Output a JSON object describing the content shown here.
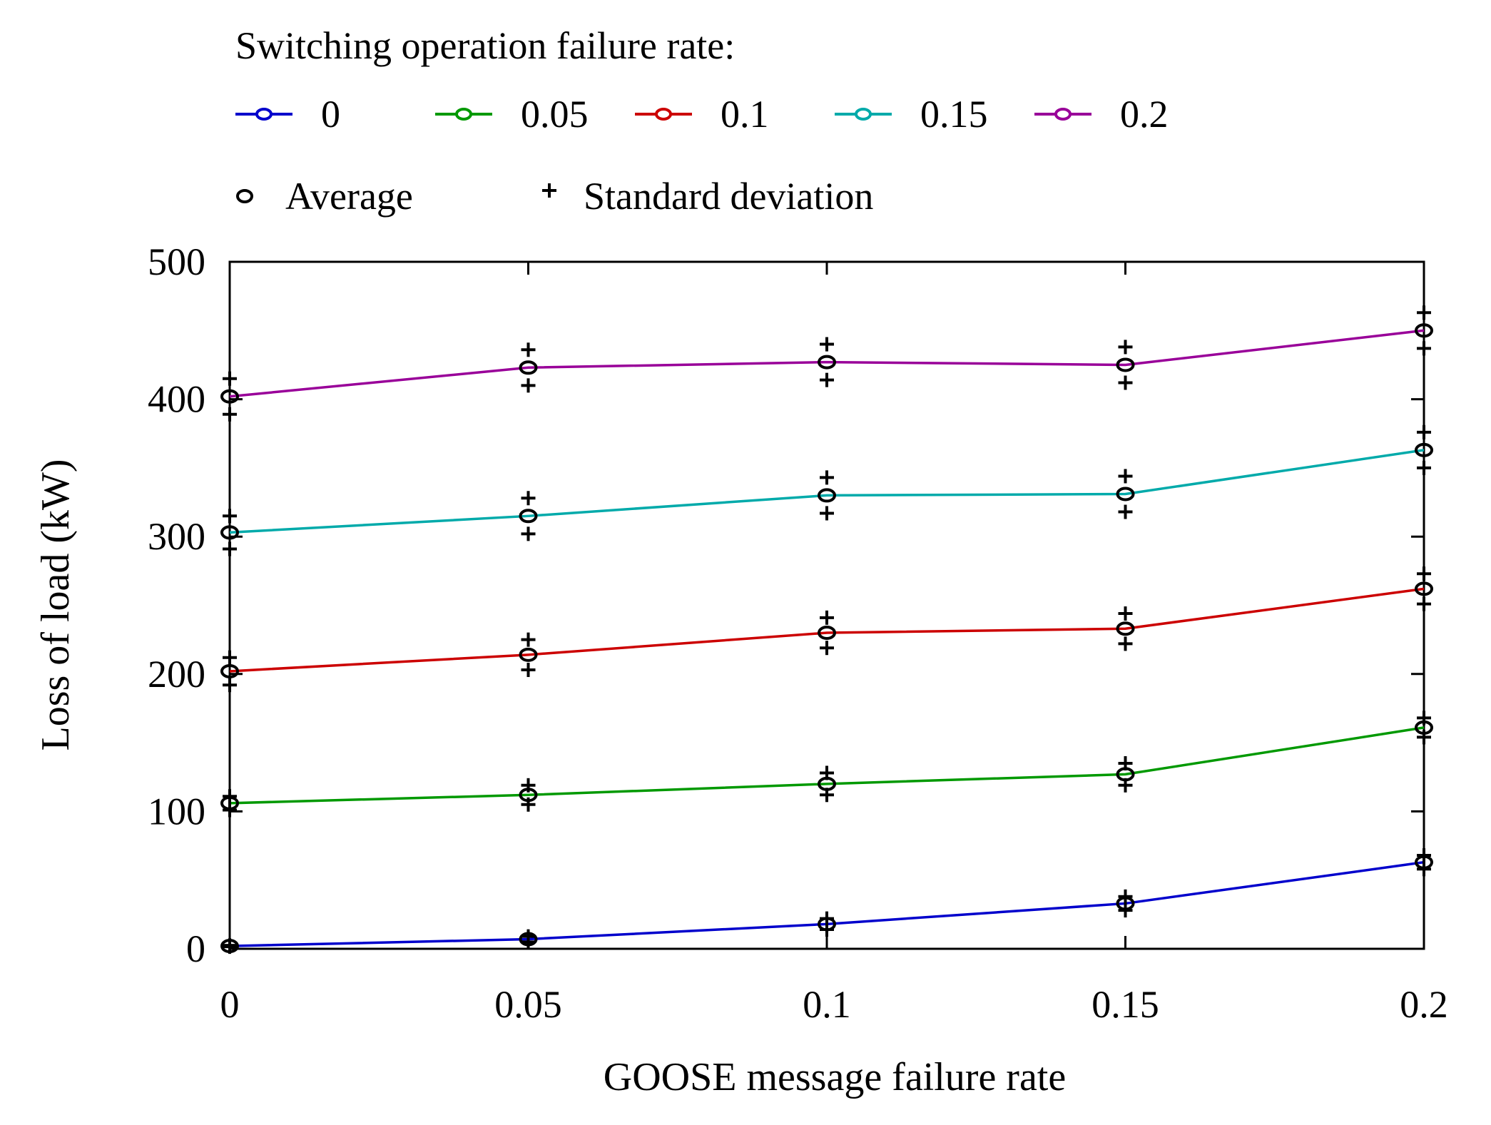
{
  "chart_data": {
    "type": "line",
    "xlabel": "GOOSE message failure rate",
    "ylabel": "Loss of load (kW)",
    "x": [
      0,
      0.05,
      0.1,
      0.15,
      0.2
    ],
    "x_tick_labels": [
      "0",
      "0.05",
      "0.1",
      "0.15",
      "0.2"
    ],
    "y_tick_labels": [
      "0",
      "100",
      "200",
      "300",
      "400",
      "500"
    ],
    "y_ticks": [
      0,
      100,
      200,
      300,
      400,
      500
    ],
    "xlim": [
      0,
      0.2
    ],
    "ylim": [
      0,
      500
    ],
    "grid": false,
    "legend_title": "Switching operation failure rate:",
    "marker_legend": {
      "average_label": "Average",
      "std_label": "Standard deviation"
    },
    "series": [
      {
        "name": "0",
        "color": "#0000cc",
        "mean": [
          2,
          7,
          18,
          33,
          63
        ],
        "std": [
          0.5,
          2,
          4,
          5,
          5
        ]
      },
      {
        "name": "0.05",
        "color": "#009900",
        "mean": [
          106,
          112,
          120,
          127,
          161
        ],
        "std": [
          5,
          7,
          8,
          8,
          7
        ]
      },
      {
        "name": "0.1",
        "color": "#cc0000",
        "mean": [
          202,
          214,
          230,
          233,
          262
        ],
        "std": [
          10,
          11,
          11,
          11,
          11
        ]
      },
      {
        "name": "0.15",
        "color": "#00aaaa",
        "mean": [
          303,
          315,
          330,
          331,
          363
        ],
        "std": [
          12,
          13,
          13,
          13,
          13
        ]
      },
      {
        "name": "0.2",
        "color": "#990099",
        "mean": [
          402,
          423,
          427,
          425,
          450
        ],
        "std": [
          13,
          13,
          13,
          13,
          13
        ]
      }
    ]
  }
}
